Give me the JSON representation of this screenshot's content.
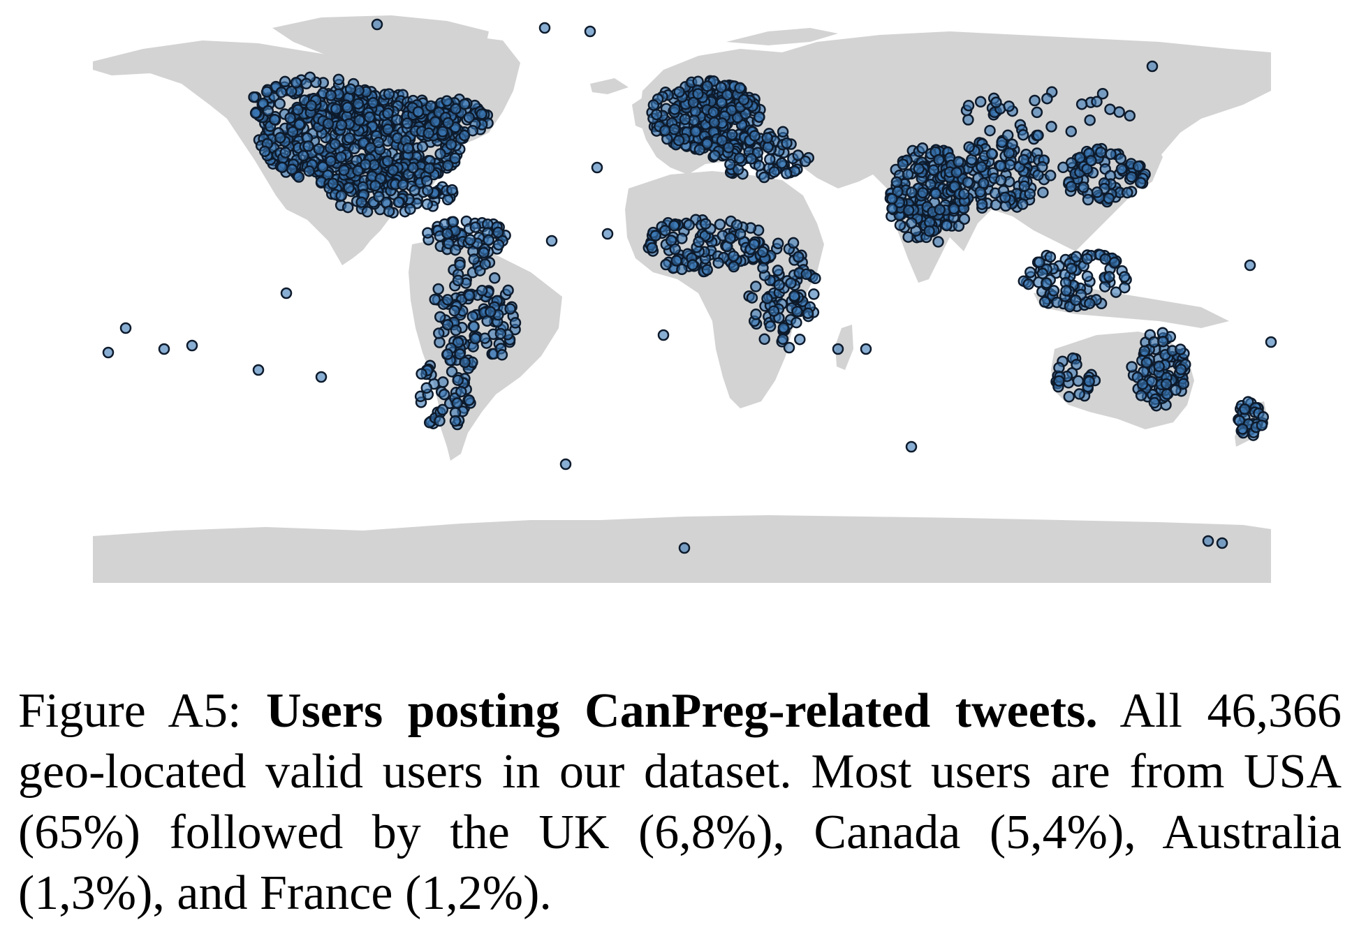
{
  "figure": {
    "caption_label": "Figure A5:",
    "caption_title": "Users posting CanPreg-related tweets.",
    "caption_body": "All 46,366 geo-located valid users in our dataset. Most users are from USA (65%) followed by the UK (6,8%), Canada (5,4%), Australia (1,3%), and France (1,2%)."
  },
  "map": {
    "projection": "equirectangular",
    "land_color": "#d3d3d3",
    "ocean_color": "#ffffff",
    "point_fill": "#3a78b5",
    "point_stroke": "#0d1a2b",
    "point_opacity": 0.6,
    "total_users": 46366,
    "country_shares": [
      {
        "country": "USA",
        "share_percent": 65
      },
      {
        "country": "UK",
        "share_percent": 6.8
      },
      {
        "country": "Canada",
        "share_percent": 5.4
      },
      {
        "country": "Australia",
        "share_percent": 1.3
      },
      {
        "country": "France",
        "share_percent": 1.2
      }
    ]
  }
}
